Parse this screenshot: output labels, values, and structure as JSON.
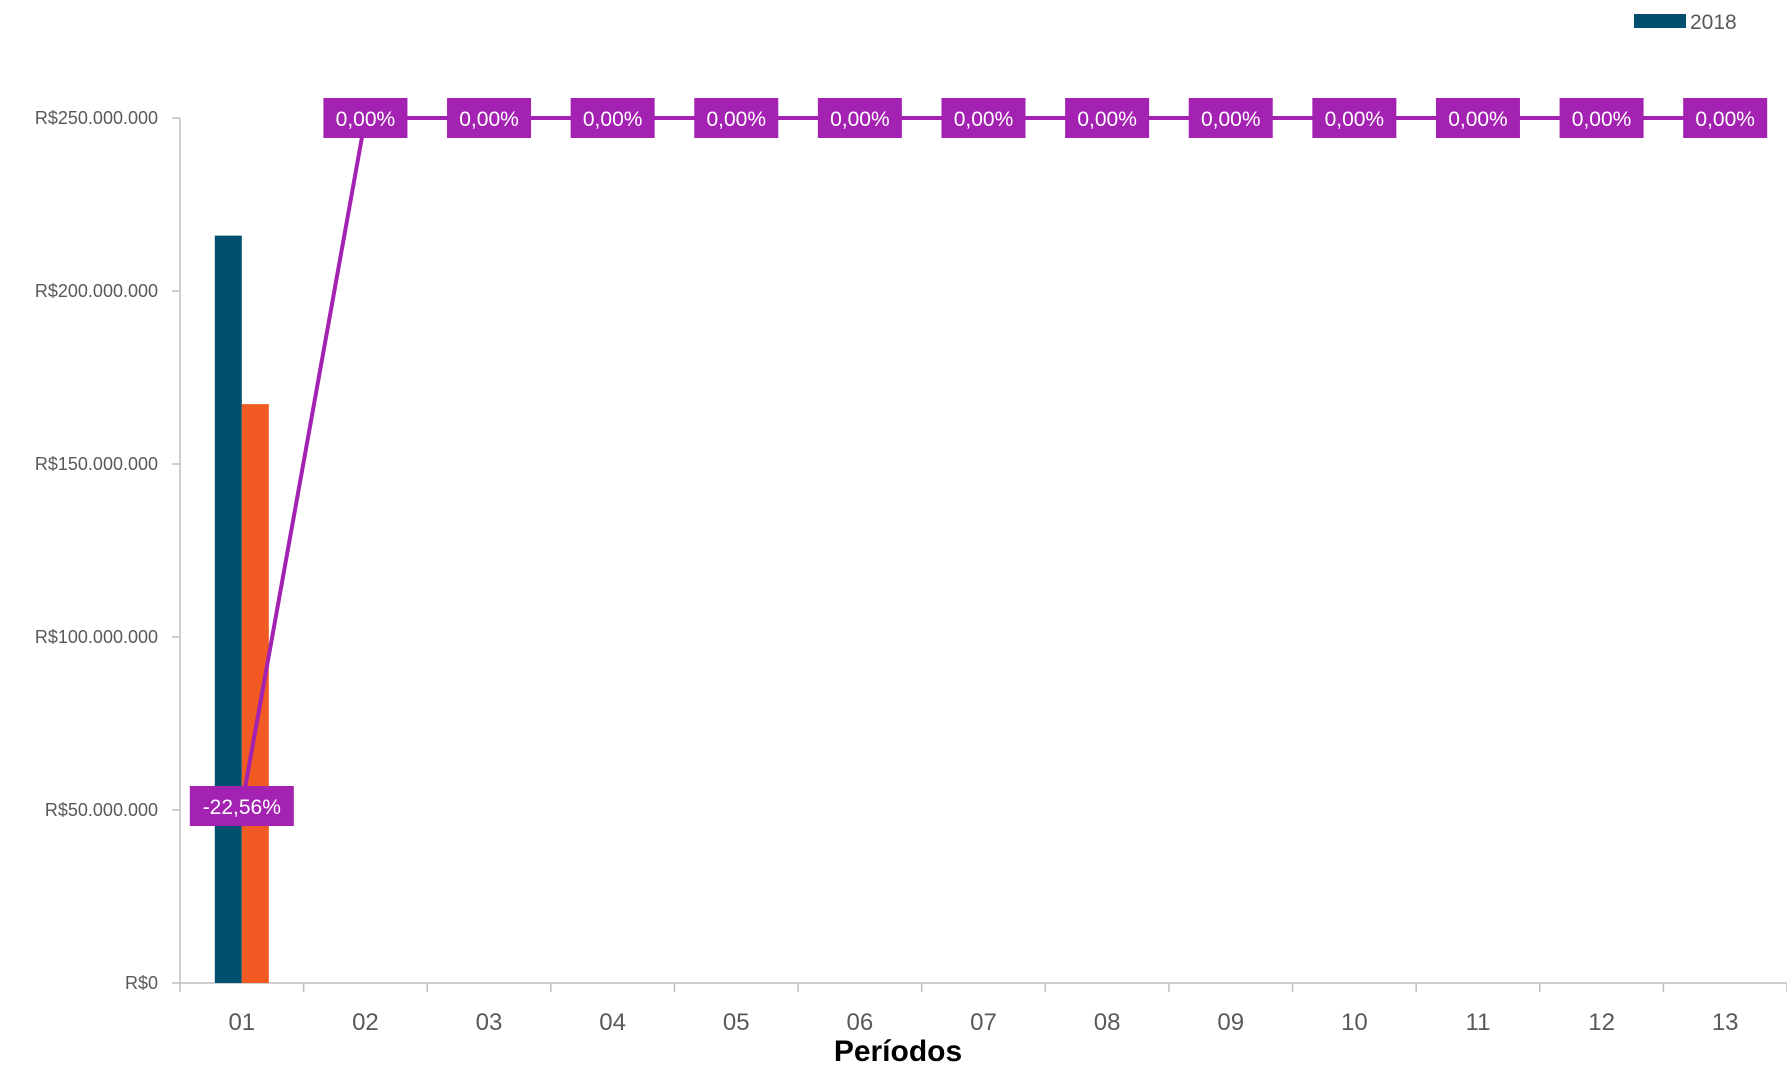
{
  "chart_data": {
    "type": "bar",
    "xlabel": "Períodos",
    "ylabel": "",
    "categories": [
      "01",
      "02",
      "03",
      "04",
      "05",
      "06",
      "07",
      "08",
      "09",
      "10",
      "11",
      "12",
      "13"
    ],
    "y_ticks": [
      "R$0",
      "R$50.000.000",
      "R$100.000.000",
      "R$150.000.000",
      "R$200.000.000",
      "R$250.000.000"
    ],
    "ylim": [
      0,
      250000000
    ],
    "grid": false,
    "legend_position": "top-right",
    "legend": [
      {
        "name": "2018",
        "color": "#004F6E"
      }
    ],
    "series": [
      {
        "name": "2018",
        "kind": "bar",
        "color": "#004F6E",
        "values": [
          216000000,
          null,
          null,
          null,
          null,
          null,
          null,
          null,
          null,
          null,
          null,
          null,
          null
        ]
      },
      {
        "kind": "bar",
        "color": "#F15A22",
        "values": [
          167300000,
          null,
          null,
          null,
          null,
          null,
          null,
          null,
          null,
          null,
          null,
          null,
          null
        ]
      },
      {
        "kind": "line",
        "axis": "secondary",
        "color": "#A322B2",
        "values": [
          -22.56,
          0,
          0,
          0,
          0,
          0,
          0,
          0,
          0,
          0,
          0,
          0,
          0
        ],
        "labels": [
          "-22,56%",
          "0,00%",
          "0,00%",
          "0,00%",
          "0,00%",
          "0,00%",
          "0,00%",
          "0,00%",
          "0,00%",
          "0,00%",
          "0,00%",
          "0,00%",
          "0,00%"
        ]
      }
    ]
  }
}
